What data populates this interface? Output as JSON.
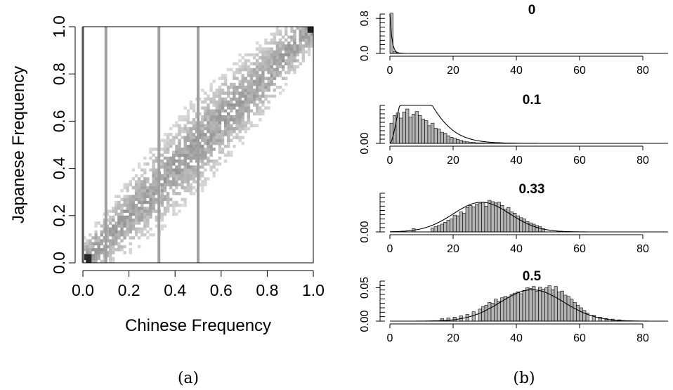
{
  "figure": {
    "panel_a_caption": "(a)",
    "panel_b_caption": "(b)"
  },
  "chart_data": [
    {
      "type": "heatmap",
      "xlabel": "Chinese Frequency",
      "ylabel": "Japanese Frequency",
      "xlim": [
        0,
        1
      ],
      "ylim": [
        0,
        1
      ],
      "xticks": [
        "0.0",
        "0.2",
        "0.4",
        "0.6",
        "0.8",
        "1.0"
      ],
      "yticks": [
        "0.0",
        "0.2",
        "0.4",
        "0.6",
        "0.8",
        "1.0"
      ],
      "description_values": {
        "density_band": "points concentrated along the diagonal y = x",
        "highest_density": [
          [
            0,
            0
          ],
          [
            1,
            1
          ]
        ]
      },
      "vertical_lines": {
        "x": [
          0,
          0.1,
          0.33,
          0.5
        ],
        "color": "#a0a0a0"
      }
    },
    {
      "type": "bar",
      "title": "0",
      "xlim": [
        0,
        90
      ],
      "xticks": [
        "0",
        "20",
        "40",
        "60",
        "80"
      ],
      "yticks": [
        "0.0",
        "0.8"
      ],
      "ylim": [
        0,
        0.9
      ],
      "bin_centers": [
        0.5,
        1.5,
        2.5,
        3.5,
        4.5
      ],
      "values": [
        0.92,
        0.04,
        0.015,
        0.008,
        0.005
      ],
      "curve": "near-zero spike"
    },
    {
      "type": "bar",
      "title": "0.1",
      "xlim": [
        0,
        90
      ],
      "xticks": [
        "0",
        "20",
        "40",
        "60",
        "80"
      ],
      "yticks": [
        "0.00"
      ],
      "ylim": [
        0,
        0.075
      ],
      "bin_centers": [
        0.5,
        1.5,
        2.5,
        3.5,
        4.5,
        5.5,
        6.5,
        7.5,
        8.5,
        9.5,
        10.5,
        11.5,
        12.5,
        13.5,
        14.5,
        15.5,
        16.5,
        17.5,
        18.5,
        19.5,
        20.5,
        21.5,
        22.5,
        23.5,
        24.5,
        25.5,
        26.5,
        27.5,
        28.5,
        29.5,
        30.5,
        31.5,
        32.5
      ],
      "values": [
        0.04,
        0.055,
        0.06,
        0.05,
        0.062,
        0.068,
        0.052,
        0.058,
        0.063,
        0.055,
        0.048,
        0.045,
        0.035,
        0.04,
        0.03,
        0.028,
        0.022,
        0.02,
        0.015,
        0.012,
        0.01,
        0.008,
        0.006,
        0.004,
        0.003,
        0.002,
        0.002,
        0.001,
        0.001,
        0.001,
        0.0005,
        0.0005,
        0.0005
      ],
      "curve": "fitted density, mode near 7"
    },
    {
      "type": "bar",
      "title": "0.33",
      "xlim": [
        0,
        90
      ],
      "xticks": [
        "0",
        "20",
        "40",
        "60",
        "80"
      ],
      "yticks": [
        "0.00"
      ],
      "ylim": [
        0,
        0.06
      ],
      "bin_centers": [
        7.5,
        13.5,
        14.5,
        15.5,
        16.5,
        17.5,
        18.5,
        19.5,
        20.5,
        21.5,
        22.5,
        23.5,
        24.5,
        25.5,
        26.5,
        27.5,
        28.5,
        29.5,
        30.5,
        31.5,
        32.5,
        33.5,
        34.5,
        35.5,
        36.5,
        37.5,
        38.5,
        39.5,
        40.5,
        41.5,
        42.5,
        43.5,
        44.5,
        45.5,
        46.5,
        47.5,
        48.5
      ],
      "values": [
        0.005,
        0.006,
        0.008,
        0.01,
        0.012,
        0.015,
        0.018,
        0.02,
        0.026,
        0.025,
        0.031,
        0.029,
        0.038,
        0.041,
        0.039,
        0.043,
        0.044,
        0.046,
        0.04,
        0.049,
        0.047,
        0.045,
        0.046,
        0.041,
        0.035,
        0.038,
        0.031,
        0.029,
        0.025,
        0.022,
        0.02,
        0.016,
        0.014,
        0.012,
        0.01,
        0.008,
        0.005
      ],
      "curve": "fitted normal, mean near 29"
    },
    {
      "type": "bar",
      "title": "0.5",
      "xlim": [
        0,
        90
      ],
      "xticks": [
        "0",
        "20",
        "40",
        "60",
        "80"
      ],
      "yticks": [
        "0.00",
        "0.05"
      ],
      "ylim": [
        0,
        0.06
      ],
      "bin_centers": [
        16.5,
        18.5,
        20.5,
        22.5,
        24.5,
        26.5,
        28.5,
        29.5,
        30.5,
        31.5,
        32.5,
        33.5,
        34.5,
        35.5,
        36.5,
        37.5,
        38.5,
        39.5,
        40.5,
        41.5,
        42.5,
        43.5,
        44.5,
        45.5,
        46.5,
        47.5,
        48.5,
        49.5,
        50.5,
        51.5,
        52.5,
        53.5,
        54.5,
        55.5,
        56.5,
        57.5,
        58.5,
        59.5,
        60.5,
        61.5,
        62.5,
        64.5,
        66.5,
        68.5,
        70.5,
        72.5
      ],
      "values": [
        0.004,
        0.005,
        0.006,
        0.008,
        0.01,
        0.014,
        0.018,
        0.022,
        0.024,
        0.028,
        0.027,
        0.033,
        0.03,
        0.035,
        0.037,
        0.036,
        0.04,
        0.042,
        0.044,
        0.041,
        0.046,
        0.05,
        0.049,
        0.052,
        0.045,
        0.051,
        0.048,
        0.05,
        0.053,
        0.047,
        0.052,
        0.044,
        0.045,
        0.039,
        0.037,
        0.033,
        0.028,
        0.024,
        0.02,
        0.016,
        0.012,
        0.009,
        0.006,
        0.004,
        0.003,
        0.002
      ],
      "curve": "fitted normal, mean near 45"
    }
  ]
}
